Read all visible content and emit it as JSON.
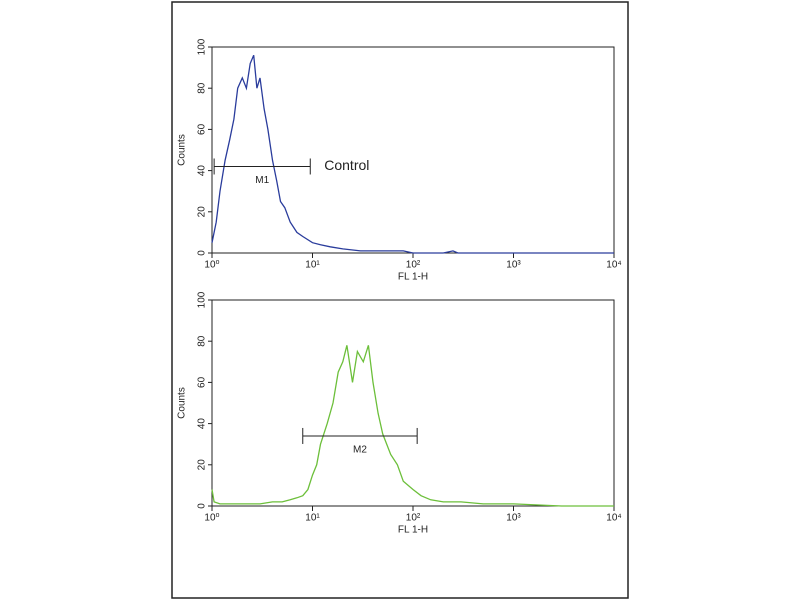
{
  "chart_data": [
    {
      "type": "line",
      "log_x": true,
      "xlabel": "FL 1-H",
      "ylabel": "Counts",
      "xlim": [
        1,
        10000
      ],
      "ylim": [
        0,
        100
      ],
      "xticks": [
        {
          "value": 1,
          "label": "10⁰"
        },
        {
          "value": 10,
          "label": "10¹"
        },
        {
          "value": 100,
          "label": "10²"
        },
        {
          "value": 1000,
          "label": "10³"
        },
        {
          "value": 10000,
          "label": "10⁴"
        }
      ],
      "yticks": [
        0,
        20,
        40,
        60,
        80,
        100
      ],
      "x": [
        1,
        1.1,
        1.2,
        1.35,
        1.5,
        1.65,
        1.8,
        2.0,
        2.2,
        2.4,
        2.6,
        2.8,
        3.0,
        3.3,
        3.6,
        4.0,
        4.4,
        4.8,
        5.3,
        6,
        7,
        8,
        10,
        12,
        15,
        20,
        30,
        50,
        80,
        100,
        200,
        250,
        280,
        500,
        1000,
        10000
      ],
      "series": [
        {
          "color": "#2a3c9c",
          "values": [
            5,
            15,
            30,
            45,
            55,
            65,
            80,
            85,
            80,
            92,
            96,
            80,
            85,
            70,
            60,
            45,
            35,
            25,
            22,
            15,
            10,
            8,
            5,
            4,
            3,
            2,
            1,
            1,
            1,
            0,
            0,
            1,
            0,
            0,
            0,
            0
          ]
        }
      ],
      "gates": [
        {
          "label": "M1",
          "x0": 1.05,
          "x1": 9.5,
          "y": 42,
          "note": "Control"
        }
      ]
    },
    {
      "type": "line",
      "log_x": true,
      "xlabel": "FL 1-H",
      "ylabel": "Counts",
      "xlim": [
        1,
        10000
      ],
      "ylim": [
        0,
        100
      ],
      "xticks": [
        {
          "value": 1,
          "label": "10⁰"
        },
        {
          "value": 10,
          "label": "10¹"
        },
        {
          "value": 100,
          "label": "10²"
        },
        {
          "value": 1000,
          "label": "10³"
        },
        {
          "value": 10000,
          "label": "10⁴"
        }
      ],
      "yticks": [
        0,
        20,
        40,
        60,
        80,
        100
      ],
      "x": [
        1,
        1.05,
        1.2,
        1.5,
        2,
        3,
        4,
        5,
        6,
        7,
        8,
        9,
        10,
        11,
        12,
        14,
        16,
        18,
        20,
        22,
        25,
        28,
        32,
        36,
        40,
        45,
        50,
        60,
        70,
        80,
        100,
        120,
        150,
        200,
        300,
        500,
        1000,
        3000,
        10000
      ],
      "series": [
        {
          "color": "#6cbf3a",
          "values": [
            8,
            2,
            1,
            1,
            1,
            1,
            2,
            2,
            3,
            4,
            5,
            8,
            15,
            20,
            30,
            40,
            50,
            65,
            70,
            78,
            60,
            75,
            70,
            78,
            60,
            45,
            35,
            25,
            20,
            12,
            8,
            5,
            3,
            2,
            2,
            1,
            1,
            0,
            0
          ]
        }
      ],
      "gates": [
        {
          "label": "M2",
          "x0": 8,
          "x1": 110,
          "y": 34
        }
      ]
    }
  ]
}
